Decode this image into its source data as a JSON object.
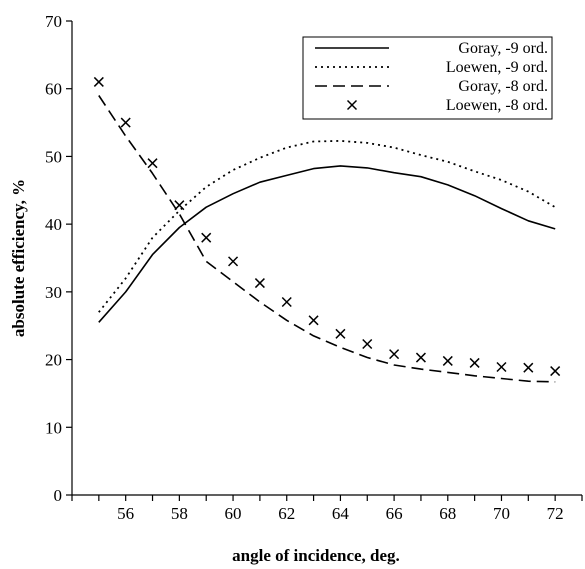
{
  "chart_data": {
    "type": "line",
    "title": "",
    "xlabel": "angle of incidence, deg.",
    "ylabel": "absolute efficiency, %",
    "xlim": [
      54,
      73
    ],
    "ylim": [
      0,
      70
    ],
    "xticks": [
      56,
      58,
      60,
      62,
      64,
      66,
      68,
      70,
      72
    ],
    "yticks": [
      0,
      10,
      20,
      30,
      40,
      50,
      60,
      70
    ],
    "grid": false,
    "legend_position": "top-right",
    "series": [
      {
        "name": "Goray, -9 ord.",
        "style": "solid",
        "x": [
          55,
          56,
          57,
          58,
          59,
          60,
          61,
          62,
          63,
          64,
          65,
          66,
          67,
          68,
          69,
          70,
          71,
          72
        ],
        "y": [
          25.5,
          30,
          35.5,
          39.5,
          42.5,
          44.5,
          46.2,
          47.2,
          48.2,
          48.6,
          48.3,
          47.6,
          47,
          45.8,
          44.2,
          42.3,
          40.5,
          39.3
        ]
      },
      {
        "name": "Loewen, -9 ord.",
        "style": "dotted",
        "x": [
          55,
          56,
          57,
          58,
          59,
          60,
          61,
          62,
          63,
          64,
          65,
          66,
          67,
          68,
          69,
          70,
          71,
          72
        ],
        "y": [
          27,
          32,
          38,
          42,
          45.5,
          48,
          49.8,
          51.3,
          52.2,
          52.3,
          52,
          51.3,
          50.2,
          49.2,
          47.8,
          46.5,
          44.8,
          42.5
        ]
      },
      {
        "name": "Goray, -8 ord.",
        "style": "dashed",
        "x": [
          55,
          56,
          57,
          58,
          59,
          60,
          61,
          62,
          63,
          64,
          65,
          66,
          67,
          68,
          69,
          70,
          71,
          72
        ],
        "y": [
          59,
          53,
          47.5,
          41.5,
          34.5,
          31.5,
          28.5,
          25.8,
          23.5,
          21.8,
          20.3,
          19.2,
          18.6,
          18.1,
          17.6,
          17.2,
          16.8,
          16.7
        ]
      },
      {
        "name": "Loewen, -8 ord.",
        "style": "markers-x",
        "x": [
          55,
          56,
          57,
          58,
          59,
          60,
          61,
          62,
          63,
          64,
          65,
          66,
          67,
          68,
          69,
          70,
          71,
          72
        ],
        "y": [
          61,
          55,
          49,
          42.8,
          38,
          34.5,
          31.3,
          28.5,
          25.8,
          23.8,
          22.3,
          20.8,
          20.3,
          19.8,
          19.5,
          18.9,
          18.8,
          18.3
        ]
      }
    ]
  }
}
